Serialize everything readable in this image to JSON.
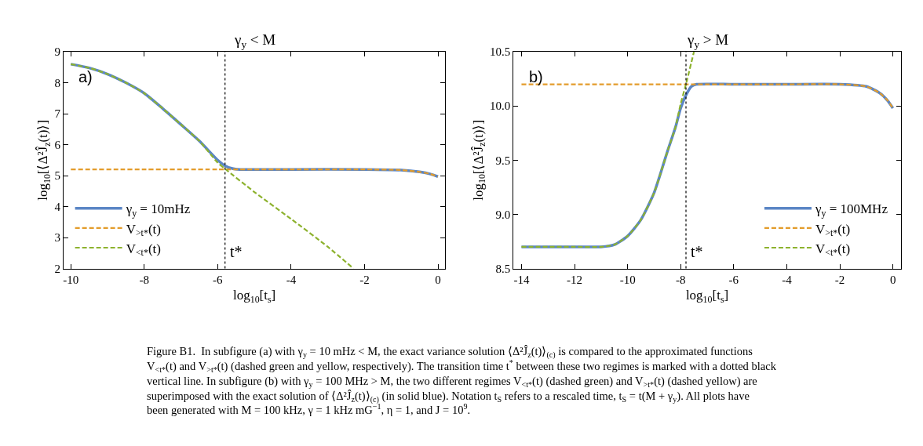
{
  "chart_data": [
    {
      "type": "line",
      "title": "γ$_{y}$ < M",
      "xlabel": "log$_{10}$[t$_{s}$]",
      "ylabel": "log$_{10}$[⟨Δ²Ĵ$_{z}$(t)⟩]",
      "xlim": [
        -10.2,
        0.2
      ],
      "xticks": [
        -10,
        -8,
        -6,
        -4,
        -2,
        0
      ],
      "ylim": [
        2,
        9
      ],
      "yticks": [
        2,
        3,
        4,
        5,
        6,
        7,
        8,
        9
      ],
      "legend": "bottom left",
      "series": [
        {
          "name": "γ$_{y}$ = 10mHz",
          "color": "#5b86c5",
          "line_style": "solid",
          "x": [
            -10,
            -9.5,
            -9,
            -8.5,
            -8,
            -7.5,
            -7,
            -6.5,
            -6,
            -5.8,
            -5.6,
            -5.4,
            -4,
            -2,
            -1,
            -0.5,
            -0.2,
            0
          ],
          "values": [
            8.6,
            8.48,
            8.28,
            8.0,
            7.66,
            7.17,
            6.65,
            6.12,
            5.5,
            5.32,
            5.23,
            5.2,
            5.2,
            5.2,
            5.18,
            5.12,
            5.05,
            4.97
          ]
        },
        {
          "name": "V$_{>t*}$(t)",
          "color": "#e39c2b",
          "line_style": "dashed",
          "x": [
            -10,
            -6,
            -4,
            -2,
            -1,
            -0.5,
            -0.2,
            0
          ],
          "values": [
            5.2,
            5.2,
            5.2,
            5.2,
            5.18,
            5.12,
            5.05,
            4.97
          ]
        },
        {
          "name": "V$_{<t*}$(t)",
          "color": "#8db22e",
          "line_style": "dashed",
          "x": [
            -10,
            -9.5,
            -9,
            -8.5,
            -8,
            -7.5,
            -7,
            -6.5,
            -6,
            -5.8,
            -5,
            -4,
            -3,
            -2.3
          ],
          "values": [
            8.6,
            8.48,
            8.28,
            8.0,
            7.66,
            7.17,
            6.65,
            6.12,
            5.42,
            5.22,
            4.47,
            3.6,
            2.7,
            2.0
          ]
        }
      ],
      "ref_lines": [
        {
          "axis": "x",
          "value": -5.8,
          "label": "t*",
          "color": "#000000",
          "line_style": "dotted"
        }
      ],
      "annotations": [
        "a)",
        "Figure B1.  In subfigure (a) with γ$_{y}$ = 10 mHz < M, the exact variance solution ⟨Δ²Ĵ$_{z}$(t)⟩$_{(c)}$ is compared to the approximated functions V$_{<t*}$(t) and V$_{>t*}$(t) (dashed green and yellow, respectively). The transition time t$^{*}$ between these two regimes is marked with a dotted black vertical line. In subfigure (b) with γ$_{y}$ = 100 MHz > M, the two different regimes V$_{<t*}$(t) (dashed green) and V$_{>t*}$(t) (dashed yellow) are superimposed with the exact solution of ⟨Δ²Ĵ$_{z}$(t)⟩$_{(c)}$ (in solid blue). Notation t$_{S}$ refers to a rescaled time, t$_{S}$ = t(M + γ$_{y}$). All plots have been generated with M = 100 kHz, γ = 1 kHz mG$^{−1}$, η = 1, and J = 10$^{9}$."
      ]
    },
    {
      "type": "line",
      "title": "γ$_{y}$ > M",
      "xlabel": "log$_{10}$[t$_{s}$]",
      "ylabel": "log$_{10}$[⟨Δ²Ĵ$_{z}$(t)⟩]",
      "xlim": [
        -14.3,
        0.3
      ],
      "xticks": [
        -14,
        -12,
        -10,
        -8,
        -6,
        -4,
        -2,
        0
      ],
      "ylim": [
        8.5,
        10.5
      ],
      "yticks": [
        8.5,
        {
          "value": 9,
          "label": "9.0"
        },
        9.5,
        {
          "value": 10,
          "label": "10.0"
        },
        10.5
      ],
      "legend": "bottom right",
      "series": [
        {
          "name": "γ$_{y}$ = 100MHz",
          "color": "#5b86c5",
          "line_style": "solid",
          "x": [
            -14,
            -12,
            -11,
            -10.5,
            -10,
            -9.5,
            -9,
            -8.5,
            -8.2,
            -8,
            -7.8,
            -7.6,
            -7.4,
            -6,
            -4,
            -2,
            -1,
            -0.5,
            -0.2,
            0
          ],
          "values": [
            8.7,
            8.7,
            8.7,
            8.72,
            8.8,
            8.95,
            9.2,
            9.58,
            9.8,
            9.98,
            10.1,
            10.18,
            10.2,
            10.2,
            10.2,
            10.2,
            10.18,
            10.12,
            10.05,
            9.98
          ]
        },
        {
          "name": "V$_{>t*}$(t)",
          "color": "#e39c2b",
          "line_style": "dashed",
          "x": [
            -14,
            -8,
            -4,
            -2,
            -1,
            -0.5,
            -0.2,
            0
          ],
          "values": [
            10.2,
            10.2,
            10.2,
            10.2,
            10.18,
            10.12,
            10.05,
            9.98
          ]
        },
        {
          "name": "V$_{<t*}$(t)",
          "color": "#8db22e",
          "line_style": "dashed",
          "x": [
            -14,
            -12,
            -11,
            -10.5,
            -10,
            -9.5,
            -9,
            -8.5,
            -8.2,
            -8,
            -7.8,
            -7.5
          ],
          "values": [
            8.7,
            8.7,
            8.7,
            8.72,
            8.8,
            8.95,
            9.2,
            9.58,
            9.8,
            10.02,
            10.2,
            10.5
          ]
        }
      ],
      "ref_lines": [
        {
          "axis": "x",
          "value": -7.8,
          "label": "t*",
          "color": "#000000",
          "line_style": "dotted"
        }
      ],
      "annotations": [
        "b)"
      ]
    }
  ]
}
